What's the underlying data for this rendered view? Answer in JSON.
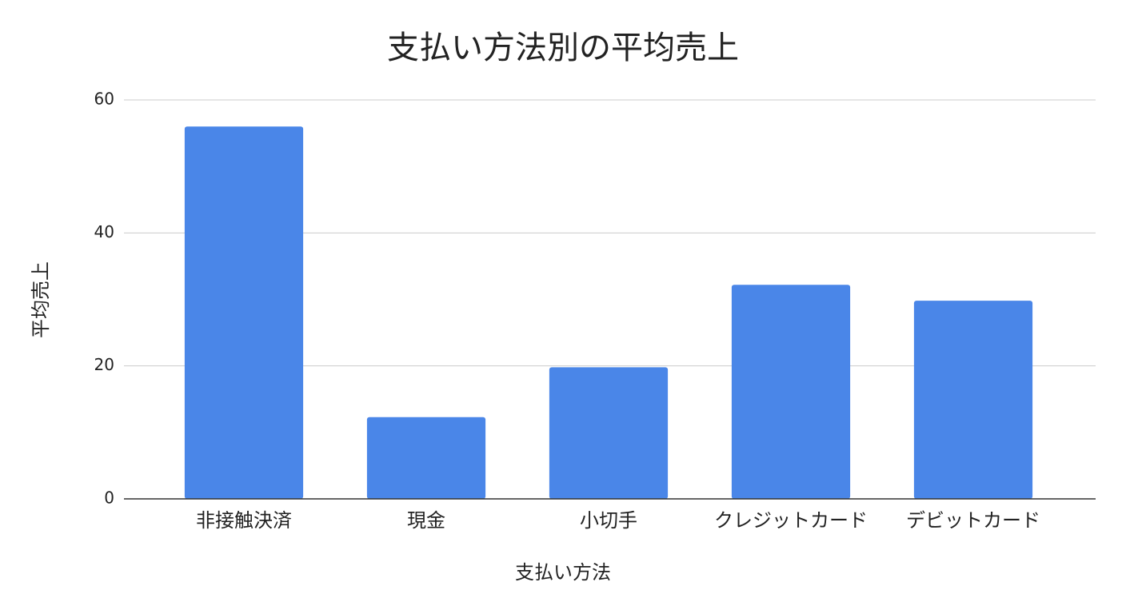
{
  "chart_data": {
    "type": "bar",
    "title": "支払い方法別の平均売上",
    "x_label": "支払い方法",
    "y_label": "平均売上",
    "categories": [
      "非接触決済",
      "現金",
      "小切手",
      "クレジットカード",
      "デビットカード"
    ],
    "values": [
      56.0,
      12.3,
      19.8,
      32.2,
      29.8
    ],
    "color": "#4a86e8",
    "ylim": [
      0,
      60
    ],
    "yticks": [
      0,
      20,
      40,
      60
    ],
    "grid": true
  }
}
